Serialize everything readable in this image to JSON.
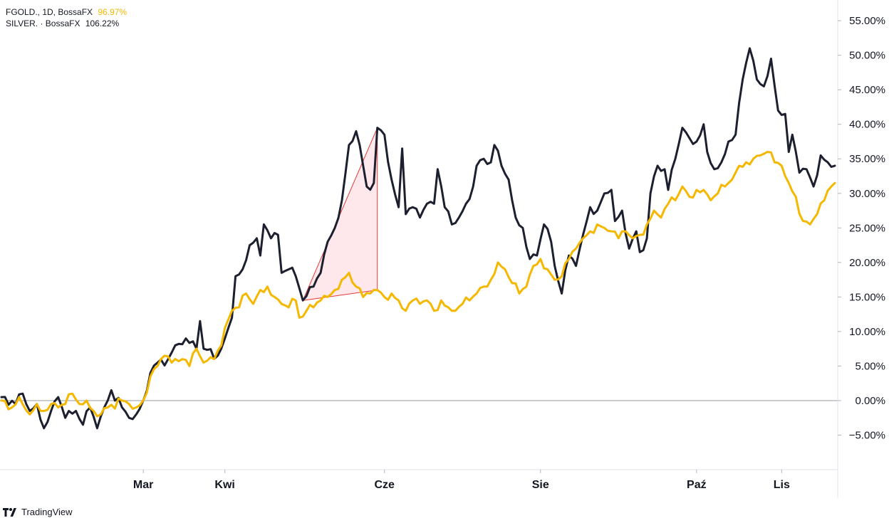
{
  "legend": [
    {
      "symbol": "FGOLD., 1D, BossaFX",
      "change": "96.97%",
      "color": "#131722",
      "change_color": "#F5B800"
    },
    {
      "symbol": "SILVER. · BossaFX",
      "change": "106.22%",
      "color": "#131722",
      "change_color": "#131722"
    }
  ],
  "brand": {
    "name": "TradingView",
    "icon": "tradingview-logo-icon"
  },
  "chart_data": {
    "type": "line",
    "y_unit": "%",
    "ylim": [
      -10,
      58
    ],
    "y_ticks": [
      55,
      50,
      45,
      40,
      35,
      30,
      25,
      20,
      15,
      10,
      5,
      0,
      -5
    ],
    "y_tick_labels": [
      "55.00%",
      "50.00%",
      "45.00%",
      "40.00%",
      "35.00%",
      "30.00%",
      "25.00%",
      "20.00%",
      "15.00%",
      "10.00%",
      "5.00%",
      "0.00%",
      "−5.00%"
    ],
    "x_labels": [
      "Mar",
      "Kwi",
      "Cze",
      "Sie",
      "Paź",
      "Lis"
    ],
    "x_label_index": [
      40,
      63,
      108,
      152,
      196,
      220
    ],
    "x_count": 236,
    "zero_line": true,
    "series": [
      {
        "name": "SILVER.",
        "color": "#1C1F2E",
        "anchors": [
          [
            0,
            0.5
          ],
          [
            4,
            -0.5
          ],
          [
            6,
            1.0
          ],
          [
            8,
            -1.5
          ],
          [
            10,
            -0.5
          ],
          [
            12,
            -4.0
          ],
          [
            14,
            -1.5
          ],
          [
            16,
            0.5
          ],
          [
            18,
            -2.5
          ],
          [
            21,
            -1.5
          ],
          [
            23,
            -3.5
          ],
          [
            25,
            -1.0
          ],
          [
            27,
            -4.0
          ],
          [
            29,
            -1.0
          ],
          [
            31,
            1.5
          ],
          [
            34,
            -1.0
          ],
          [
            36,
            -2.5
          ],
          [
            38,
            -2.0
          ],
          [
            40,
            0.0
          ],
          [
            42,
            4.0
          ],
          [
            44,
            5.5
          ],
          [
            47,
            6.0
          ],
          [
            49,
            8.0
          ],
          [
            52,
            9.0
          ],
          [
            55,
            7.5
          ],
          [
            56,
            11.5
          ],
          [
            57,
            7.5
          ],
          [
            61,
            6.5
          ],
          [
            63,
            9.0
          ],
          [
            65,
            12.0
          ],
          [
            66,
            18.0
          ],
          [
            68,
            19.0
          ],
          [
            70,
            22.5
          ],
          [
            72,
            23.5
          ],
          [
            73,
            21.0
          ],
          [
            74,
            25.5
          ],
          [
            76,
            23.5
          ],
          [
            78,
            24.0
          ],
          [
            79,
            18.5
          ],
          [
            81,
            19.0
          ],
          [
            83,
            18.0
          ],
          [
            85,
            14.5
          ],
          [
            88,
            16.5
          ],
          [
            90,
            18.5
          ],
          [
            92,
            23.0
          ],
          [
            94,
            25.0
          ],
          [
            96,
            29.0
          ],
          [
            98,
            37.0
          ],
          [
            100,
            39.0
          ],
          [
            102,
            34.0
          ],
          [
            103,
            31.0
          ],
          [
            105,
            31.5
          ],
          [
            106,
            39.5
          ],
          [
            108,
            38.5
          ],
          [
            110,
            32.0
          ],
          [
            112,
            28.0
          ],
          [
            113,
            36.5
          ],
          [
            114,
            27.0
          ],
          [
            116,
            28.0
          ],
          [
            118,
            26.5
          ],
          [
            120,
            28.5
          ],
          [
            122,
            28.5
          ],
          [
            123,
            33.5
          ],
          [
            125,
            28.0
          ],
          [
            127,
            25.5
          ],
          [
            129,
            26.5
          ],
          [
            131,
            28.5
          ],
          [
            133,
            31.0
          ],
          [
            134,
            34.0
          ],
          [
            136,
            35.0
          ],
          [
            138,
            34.5
          ],
          [
            139,
            37.0
          ],
          [
            141,
            34.0
          ],
          [
            143,
            32.0
          ],
          [
            145,
            26.5
          ],
          [
            147,
            25.0
          ],
          [
            149,
            20.5
          ],
          [
            151,
            21.0
          ],
          [
            153,
            25.5
          ],
          [
            155,
            23.0
          ],
          [
            156,
            19.5
          ],
          [
            158,
            15.5
          ],
          [
            160,
            21.0
          ],
          [
            162,
            19.5
          ],
          [
            164,
            24.0
          ],
          [
            166,
            28.0
          ],
          [
            168,
            27.5
          ],
          [
            170,
            30.0
          ],
          [
            172,
            30.5
          ],
          [
            173,
            26.0
          ],
          [
            175,
            27.5
          ],
          [
            177,
            22.0
          ],
          [
            179,
            24.5
          ],
          [
            180,
            21.5
          ],
          [
            182,
            23.5
          ],
          [
            183,
            30.0
          ],
          [
            185,
            34.0
          ],
          [
            187,
            33.5
          ],
          [
            188,
            30.5
          ],
          [
            190,
            35.0
          ],
          [
            192,
            39.5
          ],
          [
            194,
            38.0
          ],
          [
            196,
            37.5
          ],
          [
            198,
            40.0
          ],
          [
            199,
            36.0
          ],
          [
            201,
            33.5
          ],
          [
            203,
            34.5
          ],
          [
            205,
            37.5
          ],
          [
            207,
            38.5
          ],
          [
            209,
            46.5
          ],
          [
            211,
            51.0
          ],
          [
            213,
            46.5
          ],
          [
            215,
            45.5
          ],
          [
            217,
            49.5
          ],
          [
            219,
            42.0
          ],
          [
            221,
            41.5
          ],
          [
            222,
            36.0
          ],
          [
            223,
            38.5
          ],
          [
            225,
            33.0
          ],
          [
            227,
            33.5
          ],
          [
            229,
            31.0
          ],
          [
            231,
            35.5
          ],
          [
            233,
            34.5
          ],
          [
            235,
            34.0
          ]
        ]
      },
      {
        "name": "FGOLD.",
        "color": "#F5B800",
        "anchors": [
          [
            0,
            0.0
          ],
          [
            3,
            -1.0
          ],
          [
            5,
            0.5
          ],
          [
            8,
            -2.0
          ],
          [
            10,
            -0.5
          ],
          [
            12,
            -1.5
          ],
          [
            14,
            -0.5
          ],
          [
            16,
            -1.0
          ],
          [
            18,
            -0.5
          ],
          [
            20,
            1.0
          ],
          [
            22,
            -0.5
          ],
          [
            24,
            0.0
          ],
          [
            26,
            -1.5
          ],
          [
            28,
            -2.0
          ],
          [
            30,
            -1.0
          ],
          [
            34,
            0.0
          ],
          [
            36,
            -0.5
          ],
          [
            38,
            -1.0
          ],
          [
            40,
            0.0
          ],
          [
            42,
            3.5
          ],
          [
            44,
            5.0
          ],
          [
            46,
            6.5
          ],
          [
            48,
            5.5
          ],
          [
            51,
            6.0
          ],
          [
            53,
            5.0
          ],
          [
            55,
            7.5
          ],
          [
            57,
            5.5
          ],
          [
            60,
            6.0
          ],
          [
            62,
            8.0
          ],
          [
            63,
            10.5
          ],
          [
            65,
            13.0
          ],
          [
            67,
            13.5
          ],
          [
            69,
            15.5
          ],
          [
            71,
            14.0
          ],
          [
            73,
            16.0
          ],
          [
            75,
            16.5
          ],
          [
            77,
            15.0
          ],
          [
            79,
            14.0
          ],
          [
            81,
            13.5
          ],
          [
            83,
            14.5
          ],
          [
            84,
            12.0
          ],
          [
            86,
            13.0
          ],
          [
            88,
            13.5
          ],
          [
            90,
            14.5
          ],
          [
            92,
            15.0
          ],
          [
            94,
            16.0
          ],
          [
            96,
            17.5
          ],
          [
            98,
            18.5
          ],
          [
            100,
            16.5
          ],
          [
            102,
            15.0
          ],
          [
            104,
            15.5
          ],
          [
            106,
            16.0
          ],
          [
            108,
            15.0
          ],
          [
            110,
            15.5
          ],
          [
            112,
            14.5
          ],
          [
            114,
            13.0
          ],
          [
            116,
            14.5
          ],
          [
            118,
            14.0
          ],
          [
            120,
            14.5
          ],
          [
            122,
            13.0
          ],
          [
            124,
            14.5
          ],
          [
            126,
            13.5
          ],
          [
            128,
            13.0
          ],
          [
            130,
            14.0
          ],
          [
            132,
            14.5
          ],
          [
            134,
            15.5
          ],
          [
            136,
            16.5
          ],
          [
            138,
            17.5
          ],
          [
            140,
            20.0
          ],
          [
            142,
            19.0
          ],
          [
            144,
            17.0
          ],
          [
            146,
            15.5
          ],
          [
            148,
            16.5
          ],
          [
            150,
            19.5
          ],
          [
            152,
            20.5
          ],
          [
            154,
            19.0
          ],
          [
            156,
            17.5
          ],
          [
            158,
            18.0
          ],
          [
            160,
            20.5
          ],
          [
            162,
            22.0
          ],
          [
            164,
            23.5
          ],
          [
            166,
            24.5
          ],
          [
            168,
            25.5
          ],
          [
            170,
            25.0
          ],
          [
            172,
            24.5
          ],
          [
            174,
            23.5
          ],
          [
            176,
            24.5
          ],
          [
            178,
            23.5
          ],
          [
            180,
            24.0
          ],
          [
            182,
            25.5
          ],
          [
            184,
            27.5
          ],
          [
            186,
            26.5
          ],
          [
            188,
            28.5
          ],
          [
            190,
            29.0
          ],
          [
            192,
            31.0
          ],
          [
            194,
            29.5
          ],
          [
            196,
            30.5
          ],
          [
            198,
            30.5
          ],
          [
            200,
            29.0
          ],
          [
            202,
            30.0
          ],
          [
            204,
            31.0
          ],
          [
            206,
            32.0
          ],
          [
            208,
            34.0
          ],
          [
            210,
            34.5
          ],
          [
            212,
            35.0
          ],
          [
            214,
            35.5
          ],
          [
            216,
            36.0
          ],
          [
            218,
            34.5
          ],
          [
            220,
            34.0
          ],
          [
            221,
            32.5
          ],
          [
            222,
            31.5
          ],
          [
            224,
            29.5
          ],
          [
            226,
            26.0
          ],
          [
            228,
            25.5
          ],
          [
            230,
            27.0
          ],
          [
            232,
            29.0
          ],
          [
            234,
            31.0
          ],
          [
            235,
            31.5
          ]
        ]
      }
    ],
    "drawing": {
      "type": "triangle",
      "points": [
        [
          85,
          14.5
        ],
        [
          106,
          39.5
        ],
        [
          106,
          16.0
        ]
      ],
      "stroke": "#E53935",
      "fill": "#FFCDD2"
    }
  }
}
